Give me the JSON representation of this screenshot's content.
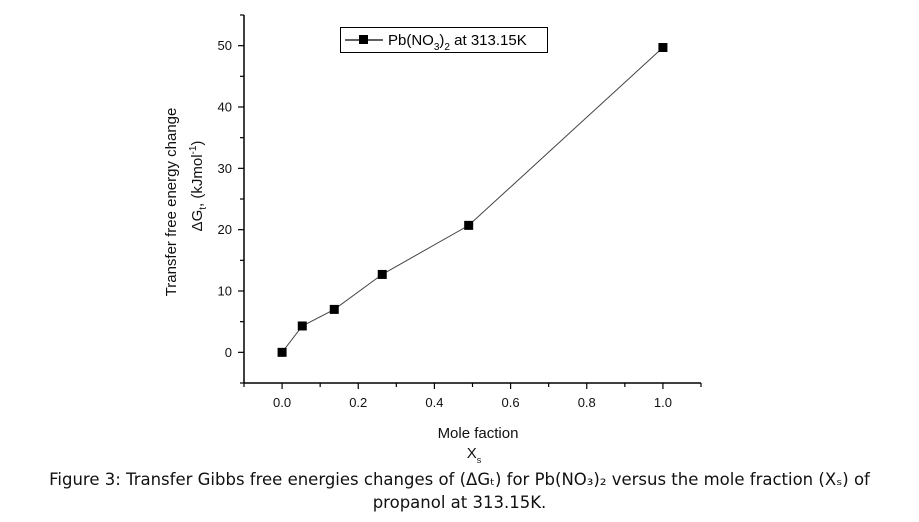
{
  "chart_data": {
    "type": "line",
    "title": "",
    "xlabel": "Mole faction",
    "xlabel_symbol": "X",
    "xlabel_symbol_sub": "s",
    "ylabel_line1": "Transfer free energy change",
    "ylabel_line2_main": "ΔG",
    "ylabel_line2_sub": "t",
    "ylabel_line2_mid": ", (kJmol",
    "ylabel_line2_sup": "-1",
    "ylabel_line2_end": ")",
    "xlim": [
      -0.1,
      1.1
    ],
    "ylim": [
      -5,
      55
    ],
    "x_ticks": [
      0.0,
      0.2,
      0.4,
      0.6,
      0.8,
      1.0
    ],
    "x_tick_labels": [
      "0.0",
      "0.2",
      "0.4",
      "0.6",
      "0.8",
      "1.0"
    ],
    "x_minor_ticks": [
      -0.1,
      0.1,
      0.3,
      0.5,
      0.7,
      0.9,
      1.1
    ],
    "y_ticks": [
      0,
      10,
      20,
      30,
      40,
      50
    ],
    "y_tick_labels": [
      "0",
      "10",
      "20",
      "30",
      "40",
      "50"
    ],
    "y_minor_ticks": [
      -5,
      5,
      15,
      25,
      35,
      45,
      55
    ],
    "grid": false,
    "legend_position": "top-center",
    "series": [
      {
        "name": "Pb(NO3)2 at 313.15K",
        "legend_main": "Pb(NO",
        "legend_sub1": "3",
        "legend_mid": ")",
        "legend_sub2": "2",
        "legend_end": " at 313.15K",
        "marker": "square",
        "color": "#000000",
        "x": [
          0.0,
          0.053,
          0.137,
          0.263,
          0.49,
          1.0
        ],
        "y": [
          0.0,
          4.3,
          7.0,
          12.7,
          20.7,
          49.7
        ]
      }
    ]
  },
  "caption": {
    "line1": "Figure 3: Transfer Gibbs free energies changes of (ΔGₜ) for Pb(NO₃)₂ versus the mole fraction (Xₛ) of",
    "line2": "propanol at 313.15K."
  }
}
